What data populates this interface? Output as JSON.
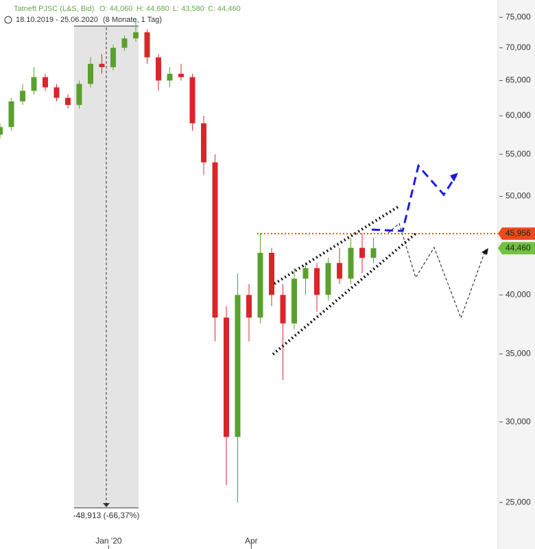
{
  "chart_data": {
    "type": "candlestick",
    "title": "Tatneft PJSC (L&S, Bid)",
    "ohlc_labels": [
      "O: 44,060",
      "H: 44,680",
      "L: 43,580",
      "C: 44,460"
    ],
    "date_range": "18.10.2019 - 25.06.2020",
    "period": "(8 Monate, 1 Tag)",
    "annotation": "-48,913 (-66,37%)",
    "log_scale": true,
    "up_color": "#5aa02c",
    "down_color": "#d9262b",
    "x": [
      0,
      5,
      10,
      15,
      20,
      25,
      30,
      35,
      40,
      45,
      50,
      55,
      60,
      65,
      70,
      75,
      80,
      85,
      90,
      95,
      100,
      105,
      110,
      115,
      120,
      125,
      130,
      135,
      140,
      145,
      150,
      155,
      160,
      165
    ],
    "open": [
      57500,
      58500,
      62000,
      63500,
      65500,
      64000,
      62500,
      61500,
      64500,
      67500,
      67000,
      70000,
      71500,
      72500,
      68500,
      65000,
      66000,
      65500,
      59000,
      54000,
      38000,
      29000,
      40000,
      38000,
      44000,
      40000,
      37500,
      41500,
      42500,
      40000,
      43000,
      41500,
      44500,
      43500
    ],
    "high": [
      59000,
      62500,
      64500,
      67000,
      66000,
      64500,
      63000,
      65000,
      68500,
      69000,
      70500,
      72000,
      74500,
      73000,
      69000,
      67000,
      67500,
      66000,
      60000,
      55000,
      39000,
      42000,
      41000,
      46000,
      44500,
      41000,
      42500,
      43000,
      43000,
      43500,
      44500,
      45500,
      46000,
      45500
    ],
    "low": [
      57000,
      58000,
      61500,
      63000,
      63500,
      62000,
      61000,
      61000,
      64000,
      66000,
      66500,
      69500,
      71000,
      67500,
      63500,
      64000,
      65000,
      58000,
      52500,
      36000,
      26000,
      25000,
      36000,
      37500,
      39000,
      33000,
      37000,
      40000,
      38500,
      39500,
      41000,
      41000,
      42000,
      43000
    ],
    "close": [
      58500,
      62000,
      63500,
      65500,
      64000,
      62500,
      61500,
      64500,
      67500,
      67000,
      70000,
      71500,
      72500,
      68500,
      65000,
      66000,
      65500,
      59000,
      54000,
      38000,
      29000,
      40000,
      38000,
      44000,
      40000,
      37500,
      41500,
      42500,
      40000,
      43000,
      41500,
      44500,
      43500,
      44460
    ],
    "xlim": [
      0,
      220
    ],
    "xticks": [
      {
        "value": 48,
        "label": "Jan '20"
      },
      {
        "value": 111,
        "label": "Apr"
      }
    ],
    "ylim": [
      22500,
      78000
    ],
    "yticks": [
      {
        "value": 25000,
        "label": "25,000"
      },
      {
        "value": 30000,
        "label": "30,000"
      },
      {
        "value": 35000,
        "label": "35,000"
      },
      {
        "value": 40000,
        "label": "40,000"
      },
      {
        "value": 50000,
        "label": "50,000"
      },
      {
        "value": 55000,
        "label": "55,000"
      },
      {
        "value": 60000,
        "label": "60,000"
      },
      {
        "value": 65000,
        "label": "65,000"
      },
      {
        "value": 70000,
        "label": "70,000"
      },
      {
        "value": 75000,
        "label": "75,000"
      }
    ],
    "price_levels": [
      {
        "value": 45956,
        "label": "45,956",
        "color": "#ef4a1c"
      },
      {
        "value": 44460,
        "label": "44,460",
        "color": "#72c23f"
      }
    ]
  }
}
